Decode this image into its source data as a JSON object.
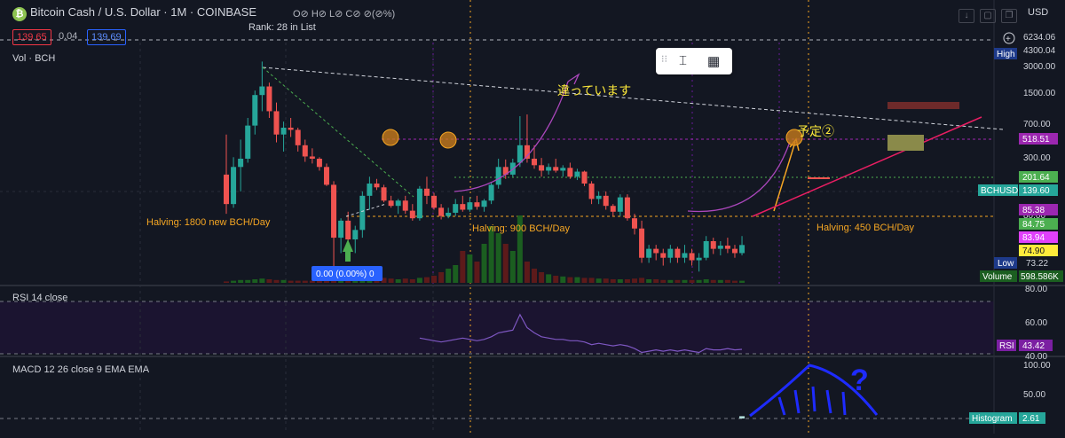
{
  "header": {
    "logo_icon": "bitcoin-cash-logo",
    "title": "Bitcoin Cash / U.S. Dollar · 1M · COINBASE",
    "ohlc": "O⊘ H⊘ L⊘ C⊘ ⊘(⊘%)",
    "rank": "Rank: 28 in List",
    "sell_price": "139.65",
    "spread": "0.04",
    "buy_price": "139.69",
    "currency": "USD"
  },
  "panes": {
    "volume_label": "Vol · BCH",
    "rsi_label": "RSI 14 close",
    "macd_label": "MACD 12 26 close 9 EMA EMA"
  },
  "colors": {
    "up": "#26a69a",
    "down": "#ef5350",
    "vol_up": "#1b5e20",
    "vol_down": "#5d1a1a",
    "halving_line": "#f5a623",
    "rsi_line": "#7e57c2",
    "annotation_magenta": "#ab47bc",
    "trend_red": "#e91e63",
    "macd_pos": "#b2dfdb",
    "macd_neg": "#ef5350",
    "drawing_blue": "#1e2bff"
  },
  "price_axis": {
    "labels": [
      "6234.06",
      "4300.04",
      "3000.00",
      "1500.00",
      "700.00",
      "300.00",
      "80.00"
    ],
    "high_label": "High",
    "high_value": "4300.04",
    "low_label": "Low",
    "low_value": "73.22",
    "volume_label": "Volume",
    "volume_value": "598.586K",
    "tags": [
      {
        "value": "518.51",
        "color": "#9c27b0"
      },
      {
        "value": "201.64",
        "color": "#4caf50"
      },
      {
        "value": "139.60",
        "color": "#26a69a",
        "label": "BCHUSD"
      },
      {
        "value": "85.38",
        "color": "#9c27b0"
      },
      {
        "value": "84.75",
        "color": "#4caf50"
      },
      {
        "value": "83.94",
        "color": "#e040fb"
      },
      {
        "value": "74.90",
        "color": "#ffeb3b"
      }
    ]
  },
  "rsi_axis": {
    "labels": [
      "80.00",
      "60.00",
      "40.00"
    ],
    "rsi_tag": "RSI",
    "rsi_value": "43.42"
  },
  "macd_axis": {
    "labels": [
      "100.00",
      "50.00"
    ],
    "hist_tag": "Histogram",
    "hist_value": "2.61"
  },
  "annotations": {
    "halvings": [
      "Halving: 1800 new BCH/Day",
      "Halving: 900 BCH/Day",
      "Halving: 450 BCH/Day"
    ],
    "jp_note_1": "違っています",
    "jp_note_2": "予定②",
    "pct_box": "0.00 (0.00%) 0",
    "question": "?"
  },
  "toolbar": {
    "text_tool_icon": "text-cursor-icon",
    "grid_icon": "table-grid-icon"
  },
  "chart_data": {
    "type": "candlestick",
    "title": "Bitcoin Cash / U.S. Dollar · 1M · COINBASE",
    "y_scale": "log",
    "ylim": [
      70,
      7000
    ],
    "ohlc": [
      [
        520,
        1100,
        250,
        300
      ],
      [
        300,
        720,
        280,
        600
      ],
      [
        600,
        1000,
        380,
        700
      ],
      [
        700,
        1500,
        650,
        1300
      ],
      [
        1300,
        2500,
        1100,
        2300
      ],
      [
        2300,
        4300,
        1700,
        2700
      ],
      [
        2700,
        2900,
        1500,
        1700
      ],
      [
        1700,
        2000,
        950,
        1100
      ],
      [
        1100,
        1400,
        800,
        1250
      ],
      [
        1250,
        1500,
        1050,
        1200
      ],
      [
        1200,
        1250,
        800,
        900
      ],
      [
        900,
        1000,
        660,
        730
      ],
      [
        730,
        850,
        640,
        700
      ],
      [
        700,
        720,
        560,
        600
      ],
      [
        600,
        640,
        420,
        430
      ],
      [
        430,
        460,
        75,
        160
      ],
      [
        160,
        230,
        120,
        220
      ],
      [
        220,
        260,
        150,
        155
      ],
      [
        155,
        200,
        120,
        185
      ],
      [
        185,
        380,
        160,
        350
      ],
      [
        350,
        500,
        270,
        440
      ],
      [
        440,
        480,
        390,
        410
      ],
      [
        410,
        430,
        310,
        320
      ],
      [
        320,
        350,
        280,
        290
      ],
      [
        290,
        330,
        250,
        320
      ],
      [
        320,
        350,
        250,
        265
      ],
      [
        265,
        300,
        220,
        230
      ],
      [
        230,
        420,
        220,
        400
      ],
      [
        400,
        500,
        300,
        350
      ],
      [
        350,
        370,
        270,
        280
      ],
      [
        280,
        300,
        225,
        240
      ],
      [
        240,
        280,
        230,
        255
      ],
      [
        255,
        330,
        240,
        300
      ],
      [
        300,
        350,
        260,
        270
      ],
      [
        270,
        340,
        260,
        310
      ],
      [
        310,
        350,
        270,
        285
      ],
      [
        285,
        330,
        260,
        320
      ],
      [
        320,
        450,
        300,
        430
      ],
      [
        430,
        700,
        400,
        600
      ],
      [
        600,
        690,
        480,
        520
      ],
      [
        520,
        700,
        500,
        650
      ],
      [
        650,
        1550,
        600,
        900
      ],
      [
        900,
        1600,
        650,
        700
      ],
      [
        700,
        900,
        580,
        620
      ],
      [
        620,
        710,
        500,
        560
      ],
      [
        560,
        640,
        520,
        600
      ],
      [
        600,
        700,
        540,
        560
      ],
      [
        560,
        620,
        500,
        590
      ],
      [
        590,
        650,
        480,
        500
      ],
      [
        500,
        580,
        470,
        550
      ],
      [
        550,
        560,
        420,
        440
      ],
      [
        440,
        460,
        300,
        330
      ],
      [
        330,
        380,
        300,
        350
      ],
      [
        350,
        380,
        270,
        290
      ],
      [
        290,
        300,
        240,
        260
      ],
      [
        260,
        360,
        240,
        340
      ],
      [
        340,
        360,
        220,
        230
      ],
      [
        230,
        250,
        170,
        190
      ],
      [
        190,
        220,
        100,
        110
      ],
      [
        110,
        140,
        100,
        130
      ],
      [
        130,
        140,
        105,
        120
      ],
      [
        120,
        130,
        95,
        110
      ],
      [
        110,
        140,
        100,
        130
      ],
      [
        130,
        135,
        100,
        110
      ],
      [
        110,
        140,
        100,
        120
      ],
      [
        120,
        130,
        95,
        105
      ],
      [
        105,
        120,
        85,
        110
      ],
      [
        110,
        165,
        105,
        150
      ],
      [
        150,
        160,
        118,
        130
      ],
      [
        130,
        150,
        115,
        138
      ],
      [
        138,
        160,
        120,
        130
      ],
      [
        130,
        140,
        110,
        120
      ],
      [
        120,
        165,
        115,
        139.6
      ]
    ],
    "volume": [
      0.02,
      0.03,
      0.04,
      0.04,
      0.05,
      0.06,
      0.05,
      0.04,
      0.04,
      0.03,
      0.03,
      0.03,
      0.03,
      0.03,
      0.05,
      0.12,
      0.1,
      0.08,
      0.07,
      0.09,
      0.1,
      0.08,
      0.07,
      0.06,
      0.05,
      0.06,
      0.05,
      0.07,
      0.08,
      0.1,
      0.15,
      0.2,
      0.25,
      0.45,
      0.4,
      0.3,
      0.55,
      0.8,
      0.7,
      0.55,
      0.45,
      0.95,
      0.3,
      0.2,
      0.15,
      0.12,
      0.1,
      0.09,
      0.08,
      0.08,
      0.07,
      0.07,
      0.06,
      0.06,
      0.05,
      0.05,
      0.05,
      0.06,
      0.07,
      0.05,
      0.05,
      0.04,
      0.04,
      0.04,
      0.04,
      0.04,
      0.04,
      0.05,
      0.04,
      0.04,
      0.04,
      0.03,
      0.03
    ],
    "rsi": [
      null,
      null,
      null,
      null,
      null,
      null,
      null,
      null,
      null,
      null,
      null,
      null,
      null,
      null,
      null,
      null,
      null,
      null,
      null,
      null,
      null,
      null,
      null,
      null,
      null,
      null,
      null,
      52,
      51,
      50,
      49,
      50,
      51,
      52,
      51,
      50,
      51,
      53,
      56,
      57,
      58,
      70,
      60,
      56,
      53,
      52,
      51,
      51,
      50,
      50,
      49,
      47,
      48,
      47,
      46,
      47,
      46,
      44,
      41,
      42,
      43,
      42,
      43,
      42,
      43,
      42,
      41,
      44,
      43,
      43,
      44,
      43,
      43.42
    ],
    "macd_hist": [
      null,
      null,
      null,
      null,
      null,
      null,
      null,
      null,
      null,
      null,
      null,
      null,
      null,
      null,
      null,
      null,
      null,
      null,
      null,
      null,
      null,
      null,
      null,
      null,
      null,
      null,
      null,
      null,
      null,
      null,
      null,
      null,
      null,
      null,
      null,
      null,
      null,
      null,
      null,
      null,
      null,
      null,
      null,
      null,
      null,
      null,
      null,
      null,
      null,
      null,
      null,
      null,
      null,
      null,
      null,
      null,
      null,
      null,
      null,
      null,
      null,
      null,
      null,
      null,
      null,
      null,
      null,
      null,
      null,
      null,
      null,
      null,
      2.61
    ],
    "halving_dates": [
      "Halving: 1800 new BCH/Day",
      "Halving: 900 BCH/Day",
      "Halving: 450 BCH/Day"
    ]
  }
}
